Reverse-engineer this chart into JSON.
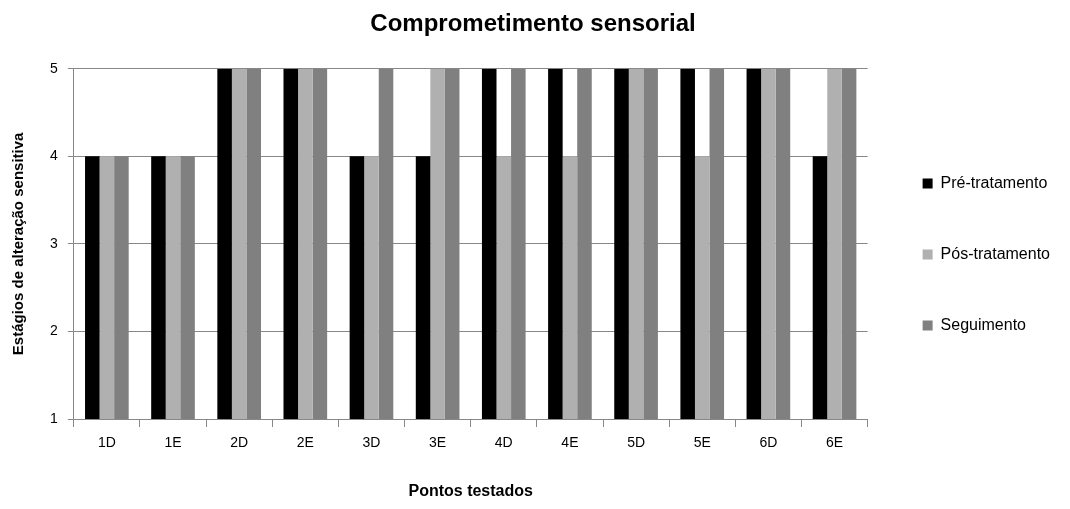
{
  "chart_data": {
    "type": "bar",
    "title": "Comprometimento sensorial",
    "xlabel": "Pontos testados",
    "ylabel": "Estágios de alteração sensitiva",
    "categories": [
      "1D",
      "1E",
      "2D",
      "2E",
      "3D",
      "3E",
      "4D",
      "4E",
      "5D",
      "5E",
      "6D",
      "6E"
    ],
    "series": [
      {
        "name": "Pré-tratamento",
        "color": "#000000",
        "values": [
          4,
          4,
          5,
          5,
          4,
          4,
          5,
          5,
          5,
          5,
          5,
          4
        ]
      },
      {
        "name": "Pós-tratamento",
        "color": "#b0b0b0",
        "values": [
          4,
          4,
          5,
          5,
          4,
          5,
          4,
          4,
          5,
          4,
          5,
          5
        ]
      },
      {
        "name": "Seguimento",
        "color": "#808080",
        "values": [
          4,
          4,
          5,
          5,
          5,
          5,
          5,
          5,
          5,
          5,
          5,
          5
        ]
      }
    ],
    "ylim": [
      1,
      5
    ],
    "yticks": [
      1,
      2,
      3,
      4,
      5
    ],
    "grid": "y",
    "legend": "right"
  }
}
